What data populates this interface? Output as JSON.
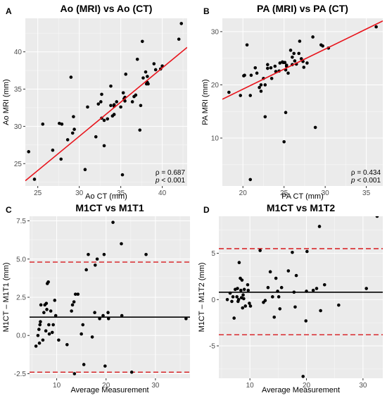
{
  "chart_data": [
    {
      "panel": "A",
      "type": "scatter",
      "title": "Ao (MRI) vs Ao (CT)",
      "xlabel": "Ao CT (mm)",
      "ylabel": "Ao MRI (mm)",
      "xlim": [
        23.5,
        43.0
      ],
      "ylim": [
        22.0,
        44.5
      ],
      "xticks": [
        25,
        30,
        35,
        40
      ],
      "yticks": [
        25,
        30,
        35,
        40
      ],
      "grid": true,
      "fit_line": {
        "x": [
          23.5,
          43.0
        ],
        "y": [
          22.7,
          40.6
        ]
      },
      "stat_rho": "ρ = 0.687",
      "stat_p": "< 0.001",
      "p_symbol": "p",
      "points": [
        [
          23.9,
          26.6
        ],
        [
          24.6,
          22.9
        ],
        [
          25.6,
          30.3
        ],
        [
          26.8,
          26.8
        ],
        [
          27.6,
          30.4
        ],
        [
          27.8,
          25.6
        ],
        [
          27.9,
          30.3
        ],
        [
          28.6,
          28.2
        ],
        [
          29.0,
          36.6
        ],
        [
          29.2,
          29.1
        ],
        [
          29.3,
          31.3
        ],
        [
          29.4,
          29.6
        ],
        [
          30.7,
          24.2
        ],
        [
          31.0,
          32.6
        ],
        [
          32.0,
          28.6
        ],
        [
          32.3,
          33.0
        ],
        [
          32.7,
          31.1
        ],
        [
          32.6,
          33.3
        ],
        [
          32.7,
          34.3
        ],
        [
          33.0,
          27.4
        ],
        [
          33.0,
          30.8
        ],
        [
          33.4,
          31.0
        ],
        [
          33.8,
          32.8
        ],
        [
          33.8,
          35.4
        ],
        [
          34.2,
          32.7
        ],
        [
          34.0,
          31.4
        ],
        [
          34.2,
          32.9
        ],
        [
          34.2,
          31.6
        ],
        [
          34.5,
          33.3
        ],
        [
          35.0,
          32.6
        ],
        [
          35.2,
          23.5
        ],
        [
          35.3,
          34.5
        ],
        [
          35.4,
          33.7
        ],
        [
          35.5,
          33.4
        ],
        [
          35.5,
          33.9
        ],
        [
          35.6,
          37.0
        ],
        [
          36.4,
          33.3
        ],
        [
          36.6,
          34.0
        ],
        [
          36.8,
          34.2
        ],
        [
          37.0,
          39.0
        ],
        [
          37.3,
          29.5
        ],
        [
          37.4,
          32.8
        ],
        [
          37.6,
          41.4
        ],
        [
          37.7,
          36.5
        ],
        [
          38.0,
          37.3
        ],
        [
          38.1,
          35.7
        ],
        [
          38.2,
          35.9
        ],
        [
          38.2,
          36.7
        ],
        [
          38.3,
          35.7
        ],
        [
          39.0,
          38.4
        ],
        [
          39.2,
          37.6
        ],
        [
          39.8,
          37.7
        ],
        [
          40.0,
          38.1
        ],
        [
          42.0,
          41.7
        ],
        [
          42.3,
          43.8
        ]
      ]
    },
    {
      "panel": "B",
      "type": "scatter",
      "title": "PA (MRI) vs PA (CT)",
      "xlabel": "PA CT (mm)",
      "ylabel": "PA MRI (mm)",
      "xlim": [
        17.5,
        37.0
      ],
      "ylim": [
        1.0,
        32.5
      ],
      "xticks": [
        20,
        25,
        30,
        35
      ],
      "yticks": [
        10,
        20,
        30
      ],
      "grid": true,
      "fit_line": {
        "x": [
          17.5,
          37.0
        ],
        "y": [
          17.3,
          32.0
        ]
      },
      "stat_rho": "ρ = 0.434",
      "stat_p": "< 0.001",
      "p_symbol": "p",
      "points": [
        [
          18.3,
          18.6
        ],
        [
          19.7,
          18.0
        ],
        [
          20.1,
          21.7
        ],
        [
          20.2,
          21.8
        ],
        [
          20.5,
          27.5
        ],
        [
          20.9,
          18.0
        ],
        [
          20.9,
          2.2
        ],
        [
          21.0,
          21.8
        ],
        [
          21.5,
          23.2
        ],
        [
          21.7,
          22.2
        ],
        [
          22.0,
          19.5
        ],
        [
          22.2,
          18.8
        ],
        [
          22.2,
          20.0
        ],
        [
          22.5,
          21.2
        ],
        [
          22.7,
          20.0
        ],
        [
          22.7,
          14.0
        ],
        [
          23.0,
          23.1
        ],
        [
          23.0,
          23.8
        ],
        [
          23.4,
          23.2
        ],
        [
          23.5,
          21.2
        ],
        [
          23.9,
          23.5
        ],
        [
          24.0,
          22.5
        ],
        [
          24.4,
          22.6
        ],
        [
          24.5,
          24.1
        ],
        [
          24.8,
          24.3
        ],
        [
          24.9,
          24.2
        ],
        [
          25.0,
          9.3
        ],
        [
          25.1,
          24.2
        ],
        [
          25.2,
          14.8
        ],
        [
          25.2,
          22.8
        ],
        [
          25.3,
          23.7
        ],
        [
          25.3,
          23.5
        ],
        [
          25.5,
          22.2
        ],
        [
          25.8,
          26.5
        ],
        [
          26.0,
          23.8
        ],
        [
          26.0,
          25.2
        ],
        [
          26.2,
          25.9
        ],
        [
          26.3,
          24.5
        ],
        [
          26.5,
          23.9
        ],
        [
          26.8,
          25.9
        ],
        [
          26.9,
          28.2
        ],
        [
          27.1,
          24.9
        ],
        [
          27.3,
          24.4
        ],
        [
          27.4,
          23.3
        ],
        [
          27.8,
          24.1
        ],
        [
          28.5,
          29.0
        ],
        [
          28.8,
          12.0
        ],
        [
          29.5,
          27.5
        ],
        [
          29.7,
          27.3
        ],
        [
          30.4,
          26.9
        ],
        [
          36.2,
          30.9
        ]
      ]
    },
    {
      "panel": "C",
      "type": "scatter",
      "title": "M1CT vs M1T1",
      "xlabel": "Average Measurement",
      "ylabel": "M1CT – M1T1 (mm)",
      "xlim": [
        4.5,
        37.0
      ],
      "ylim": [
        -2.8,
        7.8
      ],
      "xticks": [
        10,
        20,
        30
      ],
      "yticks": [
        -2.5,
        0.0,
        2.5,
        5.0,
        7.5
      ],
      "ytick_labels": [
        "-2.5",
        "0.0",
        "2.5",
        "5.0",
        "7.5"
      ],
      "grid": true,
      "mean_line": 1.2,
      "loa_upper": 4.8,
      "loa_lower": -2.4,
      "points": [
        [
          5.8,
          -0.7
        ],
        [
          6.2,
          0.0
        ],
        [
          6.4,
          0.4
        ],
        [
          6.5,
          -0.5
        ],
        [
          6.6,
          0.7
        ],
        [
          6.7,
          0.9
        ],
        [
          6.8,
          2.0
        ],
        [
          7.2,
          -0.3
        ],
        [
          7.4,
          1.5
        ],
        [
          7.6,
          2.0
        ],
        [
          7.8,
          0.3
        ],
        [
          7.9,
          2.1
        ],
        [
          8.0,
          1.7
        ],
        [
          8.1,
          3.4
        ],
        [
          8.3,
          3.5
        ],
        [
          8.4,
          0.7
        ],
        [
          8.5,
          0.1
        ],
        [
          8.8,
          1.6
        ],
        [
          9.1,
          0.2
        ],
        [
          9.3,
          0.7
        ],
        [
          9.6,
          2.3
        ],
        [
          9.8,
          1.3
        ],
        [
          10.4,
          -0.3
        ],
        [
          12.1,
          -0.6
        ],
        [
          13.0,
          1.6
        ],
        [
          13.2,
          2.0
        ],
        [
          13.5,
          2.2
        ],
        [
          13.6,
          -2.5
        ],
        [
          13.8,
          2.7
        ],
        [
          14.3,
          2.7
        ],
        [
          15.0,
          0.1
        ],
        [
          15.3,
          0.7
        ],
        [
          15.5,
          -1.9
        ],
        [
          16.0,
          4.3
        ],
        [
          16.4,
          5.3
        ],
        [
          17.2,
          -0.1
        ],
        [
          17.7,
          1.5
        ],
        [
          17.8,
          4.6
        ],
        [
          18.2,
          5.0
        ],
        [
          18.7,
          1.1
        ],
        [
          19.4,
          1.3
        ],
        [
          19.6,
          5.3
        ],
        [
          19.8,
          -2.0
        ],
        [
          20.4,
          1.5
        ],
        [
          20.5,
          1.1
        ],
        [
          21.4,
          7.4
        ],
        [
          23.1,
          6.0
        ],
        [
          23.2,
          1.3
        ],
        [
          25.2,
          -2.4
        ],
        [
          28.1,
          5.3
        ],
        [
          36.2,
          1.1
        ]
      ]
    },
    {
      "panel": "D",
      "type": "scatter",
      "title": "M1CT vs M1T2",
      "xlabel": "Average Measurement",
      "ylabel": "M1CT – M1T2 (mm)",
      "xlim": [
        4.5,
        33.5
      ],
      "ylim": [
        -8.5,
        9.0
      ],
      "xticks": [
        10,
        20,
        30
      ],
      "yticks": [
        -5,
        0,
        5
      ],
      "ytick_labels": [
        "-5",
        "0",
        "5"
      ],
      "grid": true,
      "mean_line": 0.8,
      "loa_upper": 5.5,
      "loa_lower": -3.8,
      "points": [
        [
          6.0,
          0.0
        ],
        [
          6.5,
          0.7
        ],
        [
          6.8,
          -0.2
        ],
        [
          7.0,
          0.3
        ],
        [
          7.2,
          -2.0
        ],
        [
          7.4,
          1.1
        ],
        [
          7.7,
          0.3
        ],
        [
          7.8,
          1.2
        ],
        [
          7.9,
          -0.2
        ],
        [
          8.0,
          0.0
        ],
        [
          8.1,
          4.0
        ],
        [
          8.3,
          2.3
        ],
        [
          8.4,
          1.0
        ],
        [
          8.5,
          0.2
        ],
        [
          8.6,
          2.1
        ],
        [
          8.7,
          -0.9
        ],
        [
          8.8,
          0.5
        ],
        [
          8.9,
          0.1
        ],
        [
          9.0,
          1.1
        ],
        [
          9.2,
          -0.7
        ],
        [
          9.6,
          1.6
        ],
        [
          9.7,
          1.0
        ],
        [
          9.9,
          -0.4
        ],
        [
          10.1,
          -0.7
        ],
        [
          11.8,
          5.3
        ],
        [
          12.4,
          -0.3
        ],
        [
          12.7,
          -0.1
        ],
        [
          13.2,
          1.3
        ],
        [
          13.6,
          3.0
        ],
        [
          14.0,
          0.3
        ],
        [
          14.3,
          -1.9
        ],
        [
          14.6,
          2.3
        ],
        [
          14.9,
          0.9
        ],
        [
          15.1,
          0.3
        ],
        [
          15.3,
          -1.0
        ],
        [
          15.6,
          1.3
        ],
        [
          16.8,
          3.1
        ],
        [
          17.5,
          5.1
        ],
        [
          17.8,
          0.8
        ],
        [
          18.0,
          -0.8
        ],
        [
          18.2,
          2.6
        ],
        [
          19.4,
          -8.3
        ],
        [
          19.9,
          -2.3
        ],
        [
          20.0,
          0.9
        ],
        [
          20.1,
          5.2
        ],
        [
          21.2,
          1.0
        ],
        [
          21.8,
          1.2
        ],
        [
          22.3,
          7.9
        ],
        [
          22.5,
          -1.2
        ],
        [
          23.2,
          1.6
        ],
        [
          25.7,
          -0.6
        ],
        [
          30.6,
          1.2
        ],
        [
          32.5,
          9.0
        ]
      ]
    }
  ]
}
